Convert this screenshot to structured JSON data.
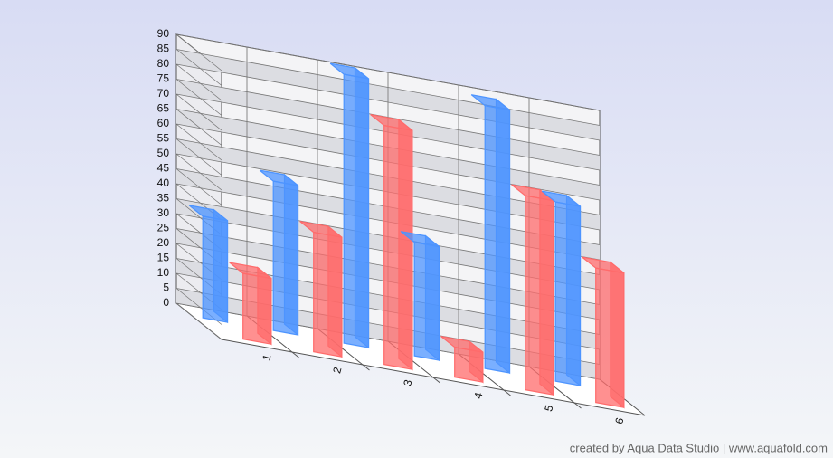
{
  "chart_data": {
    "type": "bar3d",
    "categories": [
      "1",
      "2",
      "3",
      "4",
      "5",
      "6"
    ],
    "series": [
      {
        "color": "#4d94ff",
        "values": [
          34,
          50,
          90,
          38,
          88,
          60
        ]
      },
      {
        "color": "#ff6b6b",
        "values": [
          22,
          40,
          80,
          10,
          65,
          45
        ]
      }
    ],
    "ylim": [
      0,
      90
    ],
    "yticks": [
      0,
      5,
      10,
      15,
      20,
      25,
      30,
      35,
      40,
      45,
      50,
      55,
      60,
      65,
      70,
      75,
      80,
      85,
      90
    ],
    "grid": true,
    "credit": "created by Aqua Data Studio | www.aquafold.com"
  }
}
